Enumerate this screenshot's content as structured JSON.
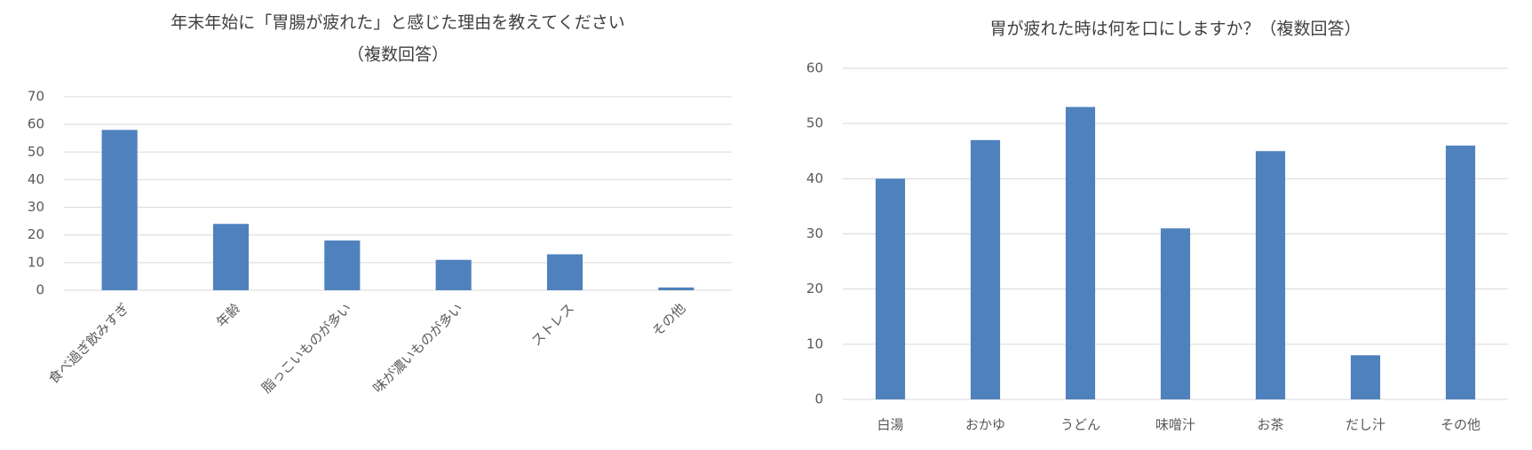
{
  "chart_data": [
    {
      "type": "bar",
      "title": "年末年始に「胃腸が疲れた」と感じた理由を教えてください",
      "subtitle": "（複数回答）",
      "categories": [
        "食べ過ぎ飲みすぎ",
        "年齢",
        "脂っこいものが多い",
        "味が濃いものが多い",
        "ストレス",
        "その他"
      ],
      "values": [
        58,
        24,
        18,
        11,
        13,
        1
      ],
      "color": "#4f81bd",
      "ylim": [
        0,
        70
      ],
      "yticks": [
        0,
        10,
        20,
        30,
        40,
        50,
        60,
        70
      ],
      "grid": true,
      "rotate_labels": true
    },
    {
      "type": "bar",
      "title": "胃が疲れた時は何を口にしますか？（複数回答）",
      "categories": [
        "白湯",
        "おかゆ",
        "うどん",
        "味噌汁",
        "お茶",
        "だし汁",
        "その他"
      ],
      "values": [
        40,
        47,
        53,
        31,
        45,
        8,
        46
      ],
      "color": "#4f81bd",
      "ylim": [
        0,
        60
      ],
      "yticks": [
        0,
        10,
        20,
        30,
        40,
        50,
        60
      ],
      "grid": true,
      "rotate_labels": false
    }
  ]
}
